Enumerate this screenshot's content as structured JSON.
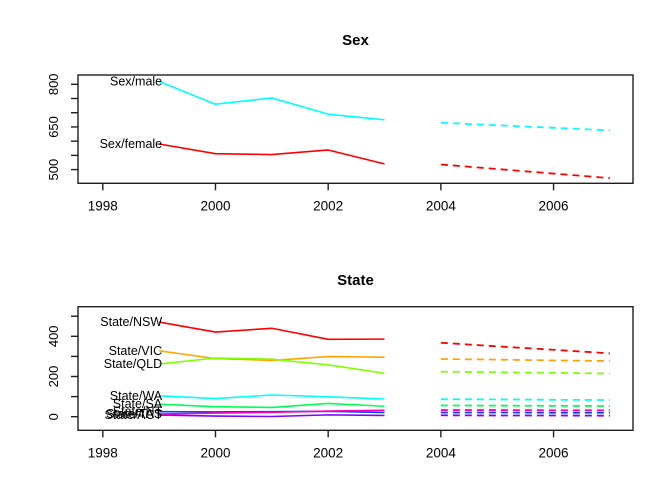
{
  "figure": {
    "background": "#ffffff",
    "axis_color": "#1f1f1f",
    "text_color": "#000000"
  },
  "chart_data": [
    {
      "type": "line",
      "title": "Sex",
      "xlabel": "",
      "ylabel": "",
      "grid": false,
      "legend_position": "inline-left-labels",
      "xlim": [
        1997.56,
        2007.41
      ],
      "ylim": [
        451.8,
        832.7
      ],
      "x_hist": [
        1999,
        2000,
        2001,
        2002,
        2003
      ],
      "x_forecast": [
        2004,
        2005,
        2006,
        2007
      ],
      "forecast_style": "dashed",
      "xticks": [
        {
          "x": 1998,
          "label": "1998"
        },
        {
          "x": 2000,
          "label": "2000"
        },
        {
          "x": 2002,
          "label": "2002"
        },
        {
          "x": 2004,
          "label": "2004"
        },
        {
          "x": 2006,
          "label": "2006"
        }
      ],
      "yticks": [
        {
          "y": 500,
          "label": "500"
        },
        {
          "y": 550,
          "label": ""
        },
        {
          "y": 600,
          "label": ""
        },
        {
          "y": 650,
          "label": "650"
        },
        {
          "y": 700,
          "label": ""
        },
        {
          "y": 750,
          "label": ""
        },
        {
          "y": 800,
          "label": "800"
        }
      ],
      "series": [
        {
          "name": "Sex/male",
          "color": "#00FFFF",
          "hist": [
            810,
            730,
            752,
            695,
            675
          ],
          "forecast": [
            665,
            656,
            647,
            638
          ]
        },
        {
          "name": "Sex/female",
          "color": "#FF0000",
          "hist": [
            590,
            556,
            553,
            569,
            520
          ],
          "forecast": [
            518,
            502,
            486,
            470
          ]
        }
      ]
    },
    {
      "type": "line",
      "title": "State",
      "xlabel": "",
      "ylabel": "",
      "grid": false,
      "legend_position": "inline-left-labels",
      "xlim": [
        1997.56,
        2007.41
      ],
      "ylim": [
        -67.7,
        547.3
      ],
      "x_hist": [
        1999,
        2000,
        2001,
        2002,
        2003
      ],
      "x_forecast": [
        2004,
        2005,
        2006,
        2007
      ],
      "forecast_style": "dashed",
      "xticks": [
        {
          "x": 1998,
          "label": "1998"
        },
        {
          "x": 2000,
          "label": "2000"
        },
        {
          "x": 2002,
          "label": "2002"
        },
        {
          "x": 2004,
          "label": "2004"
        },
        {
          "x": 2006,
          "label": "2006"
        }
      ],
      "yticks": [
        {
          "y": 0,
          "label": "0"
        },
        {
          "y": 100,
          "label": ""
        },
        {
          "y": 200,
          "label": "200"
        },
        {
          "y": 300,
          "label": ""
        },
        {
          "y": 400,
          "label": "400"
        },
        {
          "y": 500,
          "label": ""
        }
      ],
      "series": [
        {
          "name": "State/NSW",
          "color": "#FF0000",
          "hist": [
            471,
            421,
            440,
            385,
            386
          ],
          "forecast": [
            368,
            350,
            333,
            315
          ]
        },
        {
          "name": "State/VIC",
          "color": "#FFA500",
          "hist": [
            328,
            289,
            280,
            299,
            296
          ],
          "forecast": [
            287,
            284,
            280,
            277
          ]
        },
        {
          "name": "State/QLD",
          "color": "#80FF00",
          "hist": [
            262,
            292,
            286,
            258,
            216
          ],
          "forecast": [
            224,
            221,
            218,
            215
          ]
        },
        {
          "name": "State/SA",
          "color": "#00FF55",
          "hist": [
            62,
            50,
            46,
            66,
            52
          ],
          "forecast": [
            56,
            55,
            54,
            53
          ]
        },
        {
          "name": "State/WA",
          "color": "#00FFFF",
          "hist": [
            104,
            90,
            108,
            99,
            88
          ],
          "forecast": [
            87,
            86,
            84,
            83
          ]
        },
        {
          "name": "State/NT",
          "color": "#0044FF",
          "hist": [
            25,
            24,
            25,
            27,
            21
          ],
          "forecast": [
            21,
            21,
            20,
            20
          ]
        },
        {
          "name": "State/ACT",
          "color": "#8000FF",
          "hist": [
            8,
            3,
            1,
            9,
            6
          ],
          "forecast": [
            7,
            6,
            6,
            5
          ]
        },
        {
          "name": "State/TAS",
          "color": "#FF00BF",
          "hist": [
            13,
            18,
            22,
            28,
            32
          ],
          "forecast": [
            33,
            33,
            32,
            32
          ]
        }
      ]
    }
  ]
}
